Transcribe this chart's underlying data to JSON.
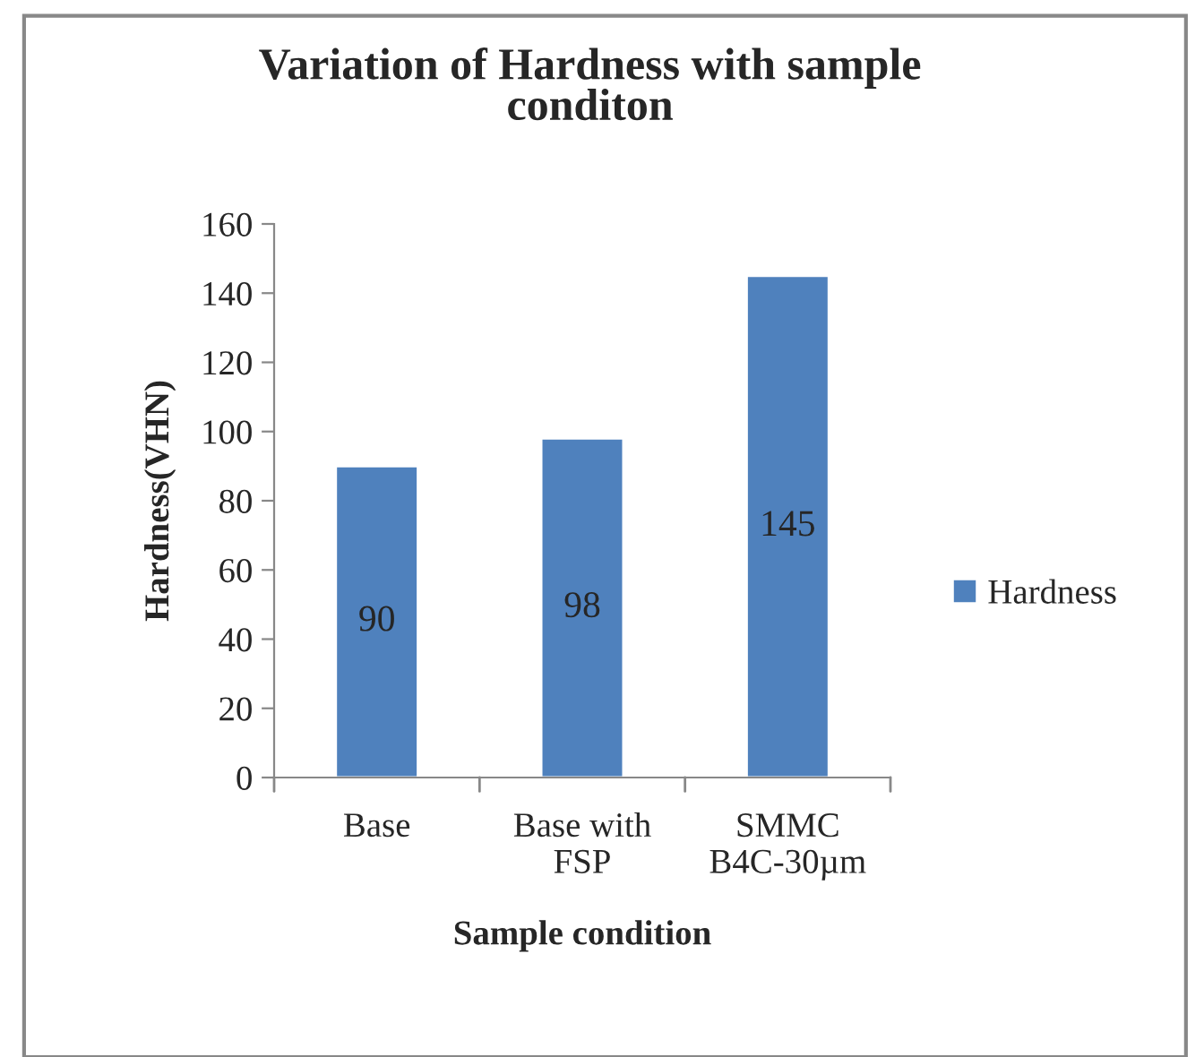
{
  "chart_data": {
    "type": "bar",
    "title": "Variation of Hardness with sample\nconditon",
    "xlabel": "Sample condition",
    "ylabel": "Hardness(VHN)",
    "categories": [
      "Base",
      "Base with\nFSP",
      "SMMC\nB4C-30µm"
    ],
    "series": [
      {
        "name": "Hardness",
        "color": "#4f81bd",
        "values": [
          90,
          98,
          145
        ]
      }
    ],
    "ylim": [
      0,
      160
    ],
    "yticks": [
      0,
      20,
      40,
      60,
      80,
      100,
      120,
      140,
      160
    ],
    "grid": false,
    "legend": "right",
    "data_labels": true
  }
}
